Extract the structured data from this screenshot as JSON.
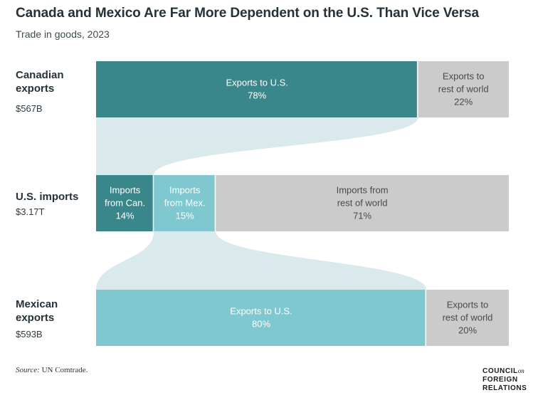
{
  "title": "Canada and Mexico Are Far More Dependent on the U.S. Than Vice Versa",
  "subtitle": "Trade in goods, 2023",
  "colors": {
    "canada": "#3a878b",
    "mexico": "#7fc8cf",
    "rest": "#cbcbcb",
    "flow": "#d9e9ec",
    "text_dark_bg": "#ffffff",
    "text_light_bg": "#4a4a4a"
  },
  "rows": [
    {
      "label_line1": "Canadian",
      "label_line2": "exports",
      "total": "$567B"
    },
    {
      "label_line1": "U.S. imports",
      "label_line2": "",
      "total": "$3.17T"
    },
    {
      "label_line1": "Mexican",
      "label_line2": "exports",
      "total": "$593B"
    }
  ],
  "chart_data": {
    "type": "bar",
    "subtype": "stacked-100-percent-with-flows",
    "units": "percent",
    "bars": [
      {
        "name": "Canadian exports",
        "total": "$567B",
        "segments": [
          {
            "label_line1": "Exports to U.S.",
            "label_line2": "",
            "value": 78,
            "display": "78%",
            "color_key": "canada"
          },
          {
            "label_line1": "Exports to",
            "label_line2": "rest of world",
            "value": 22,
            "display": "22%",
            "color_key": "rest"
          }
        ]
      },
      {
        "name": "U.S. imports",
        "total": "$3.17T",
        "segments": [
          {
            "label_line1": "Imports",
            "label_line2": "from Can.",
            "value": 14,
            "display": "14%",
            "color_key": "canada"
          },
          {
            "label_line1": "Imports",
            "label_line2": "from Mex.",
            "value": 15,
            "display": "15%",
            "color_key": "mexico"
          },
          {
            "label_line1": "Imports from",
            "label_line2": "rest of world",
            "value": 71,
            "display": "71%",
            "color_key": "rest"
          }
        ]
      },
      {
        "name": "Mexican exports",
        "total": "$593B",
        "segments": [
          {
            "label_line1": "Exports to U.S.",
            "label_line2": "",
            "value": 80,
            "display": "80%",
            "color_key": "mexico"
          },
          {
            "label_line1": "Exports to",
            "label_line2": "rest of world",
            "value": 20,
            "display": "20%",
            "color_key": "rest"
          }
        ]
      }
    ],
    "flows": [
      {
        "from_bar": 0,
        "from_segment": 0,
        "to_bar": 1,
        "to_segment": 0
      },
      {
        "from_bar": 1,
        "from_segment": 1,
        "to_bar": 2,
        "to_segment": 0
      }
    ]
  },
  "source_label": "Source:",
  "source_text": "UN Comtrade.",
  "logo": {
    "line1": "COUNCIL",
    "on": "on",
    "line2": "FOREIGN",
    "line3": "RELATIONS"
  }
}
